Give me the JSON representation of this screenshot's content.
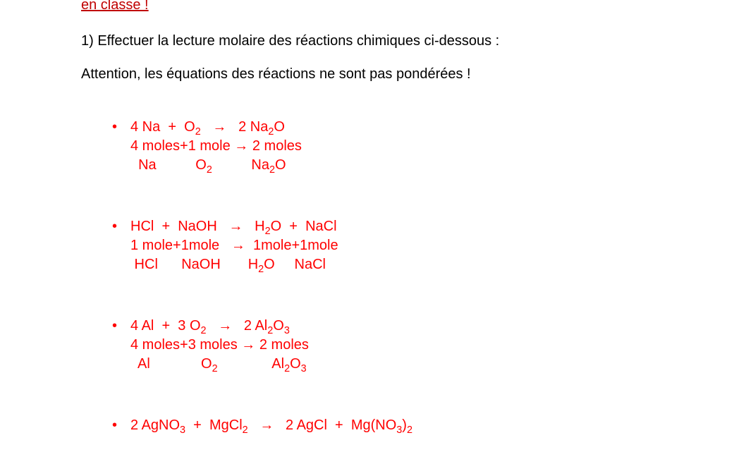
{
  "colors": {
    "header": "#c00000",
    "body_text": "#000000",
    "answer": "#ff0000",
    "background": "#ffffff"
  },
  "typography": {
    "font_family": "Arial",
    "font_size_pt": 15
  },
  "header_partial": "en classe !",
  "instruction": "1) Effectuer la lecture molaire des réactions chimiques ci-dessous :",
  "warning": "Attention, les équations des réactions ne sont pas pondérées !",
  "bullet_glyph": "•",
  "reactions": [
    {
      "equation_html": "4 Na  +  O<sub>2</sub>   →   2 Na<sub>2</sub>O",
      "moles_html": "4 moles+1 mole → 2 moles",
      "labels_html": "  Na          O<sub>2</sub>          Na<sub>2</sub>O"
    },
    {
      "equation_html": "HCl  +  NaOH   →   H<sub>2</sub>O  +  NaCl",
      "moles_html": "1 mole+1mole   →  1mole+1mole",
      "labels_html": " HCl      NaOH       H<sub>2</sub>O     NaCl"
    },
    {
      "equation_html": "4 Al  +  3 O<sub>2</sub>   →   2 Al<sub>2</sub>O<sub>3</sub>",
      "moles_html": "4 moles+3 moles → 2 moles",
      "labels_html": "  Al             O<sub>2</sub>              Al<sub>2</sub>O<sub>3</sub>"
    },
    {
      "equation_html": "2 AgNO<sub>3</sub>  +  MgCl<sub>2</sub>   →   2 AgCl  +  Mg(NO<sub>3</sub>)<sub>2</sub>",
      "moles_html": "",
      "labels_html": ""
    }
  ]
}
